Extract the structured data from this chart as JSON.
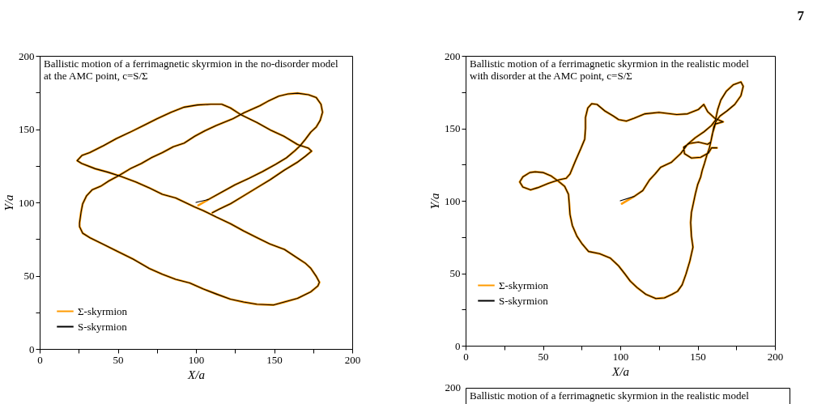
{
  "chart_data": [
    {
      "type": "line",
      "title": "Ballistic motion of a ferrimagnetic skyrmion in the no-disorder model at the AMC point, c=S/Σ",
      "xlabel": "X/a",
      "ylabel": "Y/a",
      "xlim": [
        0,
        200
      ],
      "ylim": [
        0,
        200
      ],
      "xticks": [
        0,
        {
          "value": 25,
          "label": null
        },
        50,
        {
          "value": 75,
          "label": null
        },
        100,
        {
          "value": 125,
          "label": null
        },
        150,
        {
          "value": 175,
          "label": null
        },
        200
      ],
      "yticks": [
        0,
        {
          "value": 25,
          "label": null
        },
        50,
        {
          "value": 75,
          "label": null
        },
        100,
        {
          "value": 125,
          "label": null
        },
        150,
        {
          "value": 175,
          "label": null
        },
        200
      ],
      "legend": "bottom left",
      "series": [
        {
          "name": "Σ-skyrmion",
          "color": "#ff9a00",
          "x": [
            101.5,
            108,
            116.5,
            125,
            134,
            142.5,
            151,
            158,
            163,
            166.5,
            170,
            173.5,
            177,
            179.5,
            181,
            180,
            177,
            172,
            165,
            159,
            153,
            146,
            141,
            130.5,
            123.5,
            113,
            106,
            99,
            92.5,
            85.5,
            78.5,
            71.5,
            65,
            58,
            51,
            44,
            39,
            33.5,
            30,
            27.5,
            26.5,
            25.5,
            25.5,
            27.5,
            32,
            40.5,
            49,
            59.5,
            70,
            78.5,
            87,
            96,
            104.5,
            113,
            122,
            130.5,
            139,
            149.5,
            156.5,
            165,
            173.5,
            178,
            179,
            177,
            173.5,
            170,
            165,
            156.5,
            147.5,
            139,
            130.5,
            122,
            113,
            104.5,
            99,
            87,
            78.5,
            70,
            61.5,
            52.5,
            44,
            35.5,
            27,
            24,
            27,
            32,
            40.5,
            49,
            58,
            66.5,
            75,
            84,
            92.5,
            101,
            109.5,
            116.5,
            122,
            128.5,
            139,
            147.5,
            156.5,
            165,
            172,
            174,
            170,
            165,
            156.5,
            147.5,
            139,
            130.5,
            122,
            115,
            110.5
          ],
          "values": [
            98,
            102,
            107,
            112,
            116.5,
            121,
            126,
            130.5,
            135,
            138.5,
            143,
            148,
            151.5,
            156,
            161.5,
            167,
            171.5,
            173.5,
            174.5,
            174,
            172.5,
            169,
            166,
            161,
            157,
            152.5,
            149,
            145,
            140.5,
            138,
            134,
            130.5,
            126.5,
            123,
            118.5,
            114.5,
            111,
            108.5,
            104.5,
            99,
            93.5,
            86,
            83.5,
            79,
            76,
            71.5,
            67,
            61.5,
            55,
            51,
            47.5,
            45,
            41,
            37.5,
            34,
            32,
            30.5,
            30,
            32,
            34.5,
            39,
            43,
            45.5,
            49.5,
            55,
            58.5,
            62,
            68,
            71.5,
            76,
            80.5,
            85.5,
            90,
            94.5,
            97,
            103,
            105.5,
            110,
            114,
            117.5,
            120.5,
            123,
            126.5,
            128.5,
            132,
            134,
            138.5,
            143.5,
            148,
            152.5,
            157,
            161.5,
            165,
            166.5,
            167,
            167,
            164.5,
            160,
            154.5,
            149.5,
            145,
            139.5,
            137,
            135,
            131.5,
            127.5,
            122,
            115.5,
            110,
            104.5,
            99,
            95.5,
            93
          ]
        },
        {
          "name": "S-skyrmion",
          "color": "#000000",
          "x": [
            100,
            108,
            116.5,
            125,
            134,
            142.5,
            151,
            158,
            163,
            166.5,
            170,
            173.5,
            177,
            179.5,
            181,
            180,
            177,
            172,
            165,
            159,
            153,
            146,
            141,
            130.5,
            123.5,
            113,
            106,
            99,
            92.5,
            85.5,
            78.5,
            71.5,
            65,
            58,
            51,
            44,
            39,
            33.5,
            30,
            27.5,
            26.5,
            25.5,
            25.5,
            27.5,
            32,
            40.5,
            49,
            59.5,
            70,
            78.5,
            87,
            96,
            104.5,
            113,
            122,
            130.5,
            139,
            149.5,
            156.5,
            165,
            173.5,
            178,
            179,
            177,
            173.5,
            170,
            165,
            156.5,
            147.5,
            139,
            130.5,
            122,
            113,
            104.5,
            99,
            87,
            78.5,
            70,
            61.5,
            52.5,
            44,
            35.5,
            27,
            24,
            27,
            32,
            40.5,
            49,
            58,
            66.5,
            75,
            84,
            92.5,
            101,
            109.5,
            116.5,
            122,
            128.5,
            139,
            147.5,
            156.5,
            165,
            172,
            174,
            170,
            165,
            156.5,
            147.5,
            139,
            130.5,
            122,
            115,
            110.5
          ],
          "values": [
            100,
            102,
            107,
            112,
            116.5,
            121,
            126,
            130.5,
            135,
            138.5,
            143,
            148,
            151.5,
            156,
            161.5,
            167,
            171.5,
            173.5,
            174.5,
            174,
            172.5,
            169,
            166,
            161,
            157,
            152.5,
            149,
            145,
            140.5,
            138,
            134,
            130.5,
            126.5,
            123,
            118.5,
            114.5,
            111,
            108.5,
            104.5,
            99,
            93.5,
            86,
            83.5,
            79,
            76,
            71.5,
            67,
            61.5,
            55,
            51,
            47.5,
            45,
            41,
            37.5,
            34,
            32,
            30.5,
            30,
            32,
            34.5,
            39,
            43,
            45.5,
            49.5,
            55,
            58.5,
            62,
            68,
            71.5,
            76,
            80.5,
            85.5,
            90,
            94.5,
            97,
            103,
            105.5,
            110,
            114,
            117.5,
            120.5,
            123,
            126.5,
            128.5,
            132,
            134,
            138.5,
            143.5,
            148,
            152.5,
            157,
            161.5,
            165,
            166.5,
            167,
            167,
            164.5,
            160,
            154.5,
            149.5,
            145,
            139.5,
            137,
            135,
            131.5,
            127.5,
            122,
            115.5,
            110,
            104.5,
            99,
            95.5,
            93
          ]
        }
      ]
    },
    {
      "type": "line",
      "title": "Ballistic motion of a ferrimagnetic skyrmion in the realistic model with disorder at the AMC point, c=S/Σ",
      "xlabel": "X/a",
      "ylabel": "Y/a",
      "xlim": [
        0,
        200
      ],
      "ylim": [
        0,
        200
      ],
      "xticks": [
        0,
        {
          "value": 25,
          "label": null
        },
        50,
        {
          "value": 75,
          "label": null
        },
        100,
        {
          "value": 125,
          "label": null
        },
        150,
        {
          "value": 175,
          "label": null
        },
        200
      ],
      "yticks": [
        0,
        {
          "value": 25,
          "label": null
        },
        50,
        {
          "value": 75,
          "label": null
        },
        100,
        {
          "value": 125,
          "label": null
        },
        150,
        {
          "value": 175,
          "label": null
        },
        200
      ],
      "legend": "bottom left",
      "annotations": [
        "7"
      ],
      "series": [
        {
          "name": "Σ-skyrmion",
          "color": "#ff9a00",
          "x": [
            101,
            109,
            114.5,
            119,
            122.5,
            126,
            133,
            139,
            143.5,
            148.5,
            154,
            159,
            161.5,
            163,
            165,
            168.5,
            173,
            178,
            179.5,
            178,
            174,
            169,
            164.5,
            162,
            160.5,
            159.5,
            158.5,
            157.5,
            156,
            154.5,
            153,
            152,
            150,
            148.5,
            146,
            145.5,
            146,
            147,
            145,
            142.5,
            140,
            137,
            133.5,
            128.5,
            123,
            116.5,
            111,
            106.5,
            103,
            99,
            93.5,
            86.5,
            79.5,
            75.5,
            72,
            69,
            67.5,
            67,
            66.5,
            64,
            60,
            55.5,
            50,
            45,
            41.5,
            37,
            35,
            37,
            42,
            46.5,
            53.5,
            60.5,
            65,
            67.5,
            71,
            74.5,
            77,
            77.5,
            77.5,
            79,
            81.5,
            85,
            90,
            95.5,
            99,
            104,
            109,
            116,
            125,
            136.5,
            143.5,
            150.5,
            154,
            156.5,
            161,
            166.5,
            161.5,
            159.5,
            158.5,
            156.5,
            150.5,
            144.5,
            141,
            141.5,
            146,
            152,
            157,
            159,
            162.5
          ],
          "values": [
            98,
            103,
            107,
            114.5,
            118.5,
            123,
            126.5,
            132.5,
            139,
            143.5,
            147.5,
            152,
            155.5,
            163,
            169.5,
            175.5,
            180,
            182,
            179,
            172.5,
            166.5,
            162,
            158.5,
            155,
            151,
            145.5,
            140.5,
            136,
            131.5,
            126,
            121,
            116.5,
            111,
            104.5,
            92,
            85,
            75.5,
            68,
            58.5,
            49.5,
            42,
            37.5,
            35.5,
            33,
            32.5,
            35.5,
            40,
            44.5,
            49.5,
            55,
            60.5,
            63.5,
            65,
            70,
            75.5,
            83,
            90.5,
            98,
            104.5,
            110,
            113.5,
            117,
            119.5,
            120,
            119.5,
            116.5,
            113,
            109.5,
            107.5,
            109,
            112,
            114.5,
            115.5,
            118.5,
            127.5,
            136,
            142.5,
            150,
            157.5,
            164,
            167,
            166.5,
            162,
            158.5,
            156,
            155,
            157,
            160,
            161,
            159.5,
            160,
            163,
            166.5,
            161.5,
            157,
            154.5,
            153,
            146,
            140.5,
            139,
            140.5,
            139.5,
            137,
            132.5,
            129.5,
            130,
            133,
            136.5,
            136.5
          ]
        },
        {
          "name": "S-skyrmion",
          "color": "#000000",
          "x": [
            100,
            109,
            114.5,
            119,
            122.5,
            126,
            133,
            139,
            143.5,
            148.5,
            154,
            159,
            161.5,
            163,
            165,
            168.5,
            173,
            178,
            179.5,
            178,
            174,
            169,
            164.5,
            162,
            160.5,
            159.5,
            158.5,
            157.5,
            156,
            154.5,
            153,
            152,
            150,
            148.5,
            146,
            145.5,
            146,
            147,
            145,
            142.5,
            140,
            137,
            133.5,
            128.5,
            123,
            116.5,
            111,
            106.5,
            103,
            99,
            93.5,
            86.5,
            79.5,
            75.5,
            72,
            69,
            67.5,
            67,
            66.5,
            64,
            60,
            55.5,
            50,
            45,
            41.5,
            37,
            35,
            37,
            42,
            46.5,
            53.5,
            60.5,
            65,
            67.5,
            71,
            74.5,
            77,
            77.5,
            77.5,
            79,
            81.5,
            85,
            90,
            95.5,
            99,
            104,
            109,
            116,
            125,
            136.5,
            143.5,
            150.5,
            154,
            156.5,
            161,
            166.5,
            161.5,
            159.5,
            158.5,
            156.5,
            150.5,
            144.5,
            141,
            141.5,
            146,
            152,
            157,
            159,
            162.5
          ],
          "values": [
            100,
            103,
            107,
            114.5,
            118.5,
            123,
            126.5,
            132.5,
            139,
            143.5,
            147.5,
            152,
            155.5,
            163,
            169.5,
            175.5,
            180,
            182,
            179,
            172.5,
            166.5,
            162,
            158.5,
            155,
            151,
            145.5,
            140.5,
            136,
            131.5,
            126,
            121,
            116.5,
            111,
            104.5,
            92,
            85,
            75.5,
            68,
            58.5,
            49.5,
            42,
            37.5,
            35.5,
            33,
            32.5,
            35.5,
            40,
            44.5,
            49.5,
            55,
            60.5,
            63.5,
            65,
            70,
            75.5,
            83,
            90.5,
            98,
            104.5,
            110,
            113.5,
            117,
            119.5,
            120,
            119.5,
            116.5,
            113,
            109.5,
            107.5,
            109,
            112,
            114.5,
            115.5,
            118.5,
            127.5,
            136,
            142.5,
            150,
            157.5,
            164,
            167,
            166.5,
            162,
            158.5,
            156,
            155,
            157,
            160,
            161,
            159.5,
            160,
            163,
            166.5,
            161.5,
            157,
            154.5,
            153,
            146,
            140.5,
            139,
            140.5,
            139.5,
            137,
            132.5,
            129.5,
            130,
            133,
            136.5,
            136.5
          ]
        }
      ]
    },
    {
      "type": "other",
      "title": "Ballistic motion of a ferrimagnetic skyrmion in the realistic model",
      "annotations": [
        "200"
      ]
    }
  ]
}
